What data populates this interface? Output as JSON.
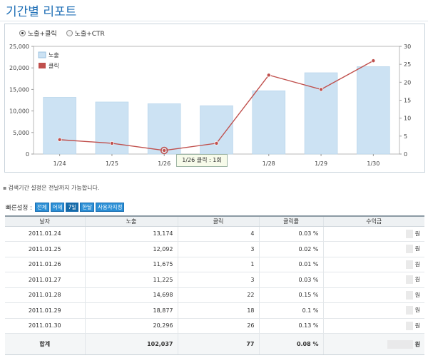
{
  "page": {
    "title": "기간별 리포트"
  },
  "options": [
    {
      "label": "노출+클릭",
      "selected": true
    },
    {
      "label": "노출+CTR",
      "selected": false
    }
  ],
  "chart_data": {
    "type": "bar",
    "categories": [
      "1/24",
      "1/25",
      "1/26",
      "1/27",
      "1/28",
      "1/29",
      "1/30"
    ],
    "series": [
      {
        "name": "노출",
        "type": "bar",
        "axis": "left",
        "color": "#cce2f3",
        "values": [
          13174,
          12092,
          11675,
          11225,
          14698,
          18877,
          20296
        ]
      },
      {
        "name": "클릭",
        "type": "line",
        "axis": "right",
        "color": "#c0504d",
        "values": [
          4,
          3,
          1,
          3,
          22,
          18,
          26
        ]
      }
    ],
    "y_left": {
      "min": 0,
      "max": 25000,
      "ticks": [
        "0",
        "5,000",
        "10,000",
        "15,000",
        "20,000",
        "25,000"
      ]
    },
    "y_right": {
      "min": 0,
      "max": 30,
      "ticks": [
        "0",
        "5",
        "10",
        "15",
        "20",
        "25",
        "30"
      ]
    },
    "legend_position": "top-left",
    "grid": false
  },
  "tooltip": {
    "text": "1/26 클릭 : 1회"
  },
  "note": {
    "text": "검색기간 설정은 전날까지 가능합니다."
  },
  "quick": {
    "label": "빠른설정 :",
    "buttons": [
      "전체",
      "어제",
      "7일",
      "한달",
      "사용자지정"
    ],
    "selected": "7일"
  },
  "table": {
    "headers": [
      "날자",
      "노출",
      "클릭",
      "클릭률",
      "수익금"
    ],
    "rows": [
      {
        "date": "2011.01.24",
        "impressions": "13,174",
        "clicks": "4",
        "ctr": "0.03 %",
        "revenue_unit": "원"
      },
      {
        "date": "2011.01.25",
        "impressions": "12,092",
        "clicks": "3",
        "ctr": "0.02 %",
        "revenue_unit": "원"
      },
      {
        "date": "2011.01.26",
        "impressions": "11,675",
        "clicks": "1",
        "ctr": "0.01 %",
        "revenue_unit": "원"
      },
      {
        "date": "2011.01.27",
        "impressions": "11,225",
        "clicks": "3",
        "ctr": "0.03 %",
        "revenue_unit": "원"
      },
      {
        "date": "2011.01.28",
        "impressions": "14,698",
        "clicks": "22",
        "ctr": "0.15 %",
        "revenue_unit": "원"
      },
      {
        "date": "2011.01.29",
        "impressions": "18,877",
        "clicks": "18",
        "ctr": "0.1 %",
        "revenue_unit": "원"
      },
      {
        "date": "2011.01.30",
        "impressions": "20,296",
        "clicks": "26",
        "ctr": "0.13 %",
        "revenue_unit": "원"
      }
    ],
    "total": {
      "label": "합계",
      "impressions": "102,037",
      "clicks": "77",
      "ctr": "0.08 %",
      "revenue_unit": "원"
    }
  }
}
